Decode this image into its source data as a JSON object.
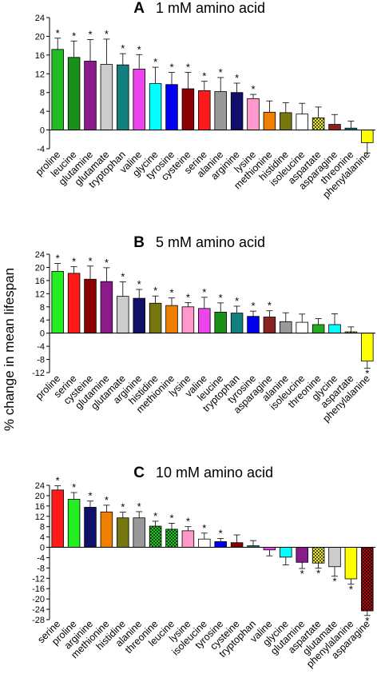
{
  "ylabel": "% change in mean lifespan",
  "chart_data": [
    {
      "type": "bar",
      "letter": "A",
      "title": "1 mM amino acid",
      "ylim": [
        -4,
        24
      ],
      "yticks": [
        -4,
        0,
        4,
        8,
        12,
        16,
        20,
        24
      ],
      "categories": [
        "proline",
        "leucine",
        "glutamine",
        "glutamate",
        "tryptophan",
        "valine",
        "glycine",
        "tyrosine",
        "cysteine",
        "serine",
        "alanine",
        "arginine",
        "lysine",
        "methionine",
        "histidine",
        "isoleucine",
        "aspartate",
        "asparagine",
        "threonine",
        "phenylalanine"
      ],
      "values": [
        17.2,
        15.5,
        14.7,
        14.0,
        13.9,
        13.0,
        9.9,
        9.7,
        8.8,
        8.4,
        8.2,
        8.0,
        6.7,
        3.8,
        3.7,
        3.4,
        2.6,
        1.2,
        0.4,
        -2.7
      ],
      "errors": [
        2.4,
        3.5,
        4.6,
        5.4,
        2.4,
        3.1,
        3.5,
        2.6,
        3.5,
        2.0,
        3.0,
        2.0,
        0.9,
        2.4,
        2.1,
        2.3,
        2.3,
        2.1,
        1.5,
        2.2
      ],
      "significant": [
        true,
        true,
        true,
        true,
        true,
        true,
        true,
        true,
        true,
        true,
        true,
        true,
        true,
        false,
        false,
        false,
        false,
        false,
        false,
        false
      ],
      "colors": [
        "#22bb22",
        "#1a8f1a",
        "#8b1a8b",
        "#cccccc",
        "#138080",
        "#ee44ee",
        "#00ffff",
        "#0000ee",
        "#8b0000",
        "#ff1a1a",
        "#999999",
        "#10106a",
        "#ff99cc",
        "#ee7f00",
        "#777710",
        "#ffffff",
        "checker-yellow",
        "#882222",
        "#008080",
        "#ffff00"
      ]
    },
    {
      "type": "bar",
      "letter": "B",
      "title": "5 mM amino acid",
      "ylim": [
        -12,
        24
      ],
      "yticks": [
        -12,
        -8,
        -4,
        0,
        4,
        8,
        12,
        16,
        20,
        24
      ],
      "categories": [
        "proline",
        "serine",
        "cysteine",
        "glutamine",
        "glutamate",
        "arginine",
        "histidine",
        "methionine",
        "lysine",
        "valine",
        "leucine",
        "tryptophan",
        "tyrosine",
        "asparagine",
        "alanine",
        "isoleucine",
        "threonine",
        "glycine",
        "aspartate",
        "phenylalanine"
      ],
      "values": [
        18.8,
        18.2,
        16.4,
        15.7,
        11.2,
        10.6,
        9.1,
        8.4,
        8.0,
        7.5,
        6.4,
        6.1,
        5.1,
        4.9,
        3.5,
        3.3,
        2.6,
        2.6,
        0.4,
        -8.5
      ],
      "errors": [
        2.4,
        2.0,
        4.0,
        4.2,
        4.4,
        2.7,
        2.2,
        2.3,
        1.3,
        3.4,
        2.8,
        2.1,
        1.6,
        1.9,
        2.7,
        2.5,
        1.8,
        3.3,
        1.5,
        2.2
      ],
      "significant": [
        true,
        true,
        true,
        true,
        true,
        true,
        true,
        true,
        true,
        true,
        true,
        true,
        true,
        true,
        false,
        false,
        false,
        false,
        false,
        true
      ],
      "colors": [
        "#22ee22",
        "#ff1a1a",
        "#8b0000",
        "#8b1a8b",
        "#cccccc",
        "#10106a",
        "#777710",
        "#ee7f00",
        "#ff99cc",
        "#ee44ee",
        "#1a8f1a",
        "#138080",
        "#0000ee",
        "#882222",
        "#999999",
        "#ffffff",
        "#22aa22",
        "#00ffff",
        "checker-yellow",
        "#ffff00"
      ]
    },
    {
      "type": "bar",
      "letter": "C",
      "title": "10 mM amino acid",
      "ylim": [
        -28,
        24
      ],
      "yticks": [
        -28,
        -24,
        -20,
        -16,
        -12,
        -8,
        -4,
        0,
        4,
        8,
        12,
        16,
        20,
        24
      ],
      "categories": [
        "serine",
        "proline",
        "arginine",
        "methionine",
        "histidine",
        "alanine",
        "threonine",
        "leucine",
        "lysine",
        "isoleucine",
        "tyrosine",
        "cysteine",
        "tryptophan",
        "valine",
        "glycine",
        "glutamine",
        "aspartate",
        "glutamate",
        "phenylalanine",
        "asparagine"
      ],
      "values": [
        22.2,
        18.6,
        15.5,
        13.7,
        11.4,
        11.4,
        8.2,
        7.0,
        6.4,
        3.2,
        2.2,
        1.8,
        0.6,
        -1.0,
        -3.8,
        -5.8,
        -6.1,
        -7.5,
        -12.2,
        -24.6
      ],
      "errors": [
        1.6,
        2.6,
        2.4,
        2.6,
        2.2,
        2.4,
        1.9,
        2.3,
        1.6,
        2.3,
        1.2,
        3.0,
        2.0,
        2.3,
        3.0,
        2.4,
        2.0,
        3.7,
        2.1,
        1.8
      ],
      "significant": [
        true,
        true,
        true,
        true,
        true,
        true,
        true,
        true,
        true,
        true,
        true,
        false,
        false,
        false,
        false,
        true,
        true,
        true,
        true,
        true
      ],
      "colors": [
        "#ff1a1a",
        "#22ee22",
        "#10106a",
        "#ee7f00",
        "#777710",
        "#999999",
        "checker-green",
        "checker-green",
        "#ff99cc",
        "#ffffff",
        "#0000ee",
        "#8b0000",
        "#138080",
        "#ee44ee",
        "#00ffff",
        "#8b1a8b",
        "checker-yellow",
        "#cccccc",
        "#ffff00",
        "checker-red"
      ]
    }
  ]
}
